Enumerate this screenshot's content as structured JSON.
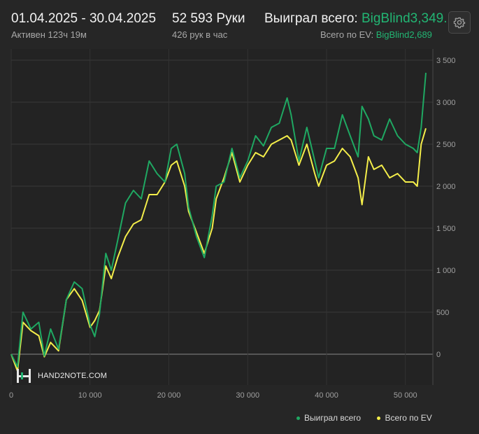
{
  "header": {
    "date_range": "01.04.2025 - 30.04.2025",
    "active": "Активен 123ч 19м",
    "hands": "52 593 Руки",
    "hands_per_hour": "426 рук в час",
    "won_label": "Выиграл всего:",
    "won_value": "BigBlind3,349.",
    "ev_label": "Всего по EV:",
    "ev_value": "BigBlind2,689"
  },
  "icons": {
    "settings": "gear-icon"
  },
  "watermark": "HAND2NOTE.COM",
  "colors": {
    "won": "#1fa862",
    "ev": "#f4ee4a",
    "accent": "#22b573"
  },
  "chart_data": {
    "type": "line",
    "xlabel": "",
    "ylabel": "",
    "xlim": [
      0,
      52593
    ],
    "ylim": [
      -300,
      3500
    ],
    "x_ticks": [
      "0",
      "10 000",
      "20 000",
      "30 000",
      "40 000",
      "50 000"
    ],
    "y_ticks": [
      "3 500",
      "3 000",
      "2 500",
      "2 000",
      "1 500",
      "1 000",
      "500",
      "0"
    ],
    "grid": true,
    "legend": "bottom-right",
    "series": [
      {
        "name": "Выиграл всего",
        "x": [
          0,
          800,
          1500,
          2500,
          3500,
          4200,
          5000,
          6000,
          7000,
          8000,
          9000,
          10000,
          10600,
          11200,
          12000,
          12700,
          13500,
          14500,
          15500,
          16500,
          17500,
          18500,
          19500,
          20300,
          21000,
          22000,
          22500,
          23500,
          24500,
          25500,
          26000,
          27000,
          28000,
          29000,
          30000,
          31000,
          32000,
          33000,
          34000,
          35000,
          35500,
          36500,
          37500,
          38500,
          39000,
          40000,
          41000,
          42000,
          43000,
          44000,
          44500,
          45300,
          46000,
          47000,
          48000,
          49000,
          50000,
          51000,
          51500,
          52000,
          52593
        ],
        "y": [
          0,
          -150,
          500,
          300,
          380,
          -20,
          300,
          60,
          650,
          860,
          780,
          350,
          210,
          480,
          1200,
          1000,
          1350,
          1800,
          1950,
          1850,
          2300,
          2150,
          2050,
          2450,
          2500,
          2150,
          1750,
          1400,
          1150,
          1650,
          2000,
          2050,
          2450,
          2100,
          2300,
          2600,
          2480,
          2700,
          2750,
          3050,
          2850,
          2300,
          2700,
          2300,
          2100,
          2450,
          2450,
          2850,
          2600,
          2350,
          2950,
          2800,
          2600,
          2550,
          2800,
          2600,
          2500,
          2450,
          2400,
          2700,
          3350
        ]
      },
      {
        "name": "Всего по EV",
        "x": [
          0,
          800,
          1500,
          2500,
          3500,
          4200,
          5000,
          6000,
          7000,
          8000,
          9000,
          10000,
          10600,
          11200,
          12000,
          12700,
          13500,
          14500,
          15500,
          16500,
          17500,
          18500,
          19500,
          20300,
          21000,
          22000,
          22500,
          23500,
          24500,
          25500,
          26000,
          27000,
          28000,
          29000,
          30000,
          31000,
          32000,
          33000,
          34000,
          35000,
          35500,
          36500,
          37500,
          38500,
          39000,
          40000,
          41000,
          42000,
          43000,
          44000,
          44500,
          45300,
          46000,
          47000,
          48000,
          49000,
          50000,
          51000,
          51500,
          52000,
          52593
        ],
        "y": [
          0,
          -200,
          380,
          280,
          220,
          -30,
          140,
          40,
          650,
          780,
          640,
          320,
          400,
          520,
          1050,
          900,
          1150,
          1400,
          1550,
          1600,
          1900,
          1900,
          2050,
          2250,
          2300,
          2000,
          1700,
          1450,
          1200,
          1500,
          1850,
          2100,
          2400,
          2050,
          2250,
          2400,
          2350,
          2500,
          2550,
          2600,
          2550,
          2250,
          2500,
          2150,
          2000,
          2250,
          2300,
          2450,
          2350,
          2100,
          1780,
          2350,
          2200,
          2250,
          2100,
          2150,
          2050,
          2050,
          2000,
          2500,
          2689
        ]
      }
    ]
  }
}
